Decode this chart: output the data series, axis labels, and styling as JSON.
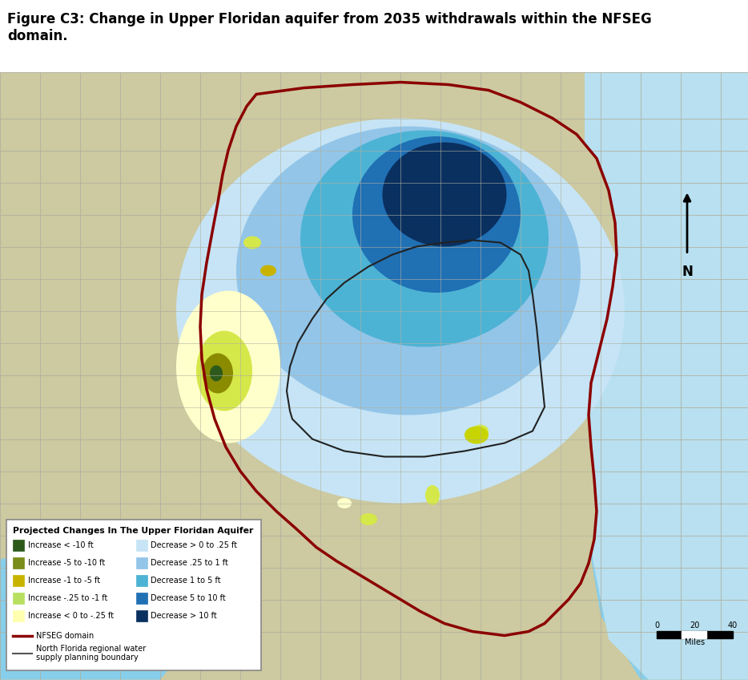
{
  "title": "Figure C3: Change in Upper Floridan aquifer from 2035 withdrawals within the NFSEG\ndomain.",
  "title_fontsize": 12,
  "background_color": "#ffffff",
  "legend_title": "Projected Changes In The Upper Floridan Aquifer",
  "legend_items": [
    {
      "label": "Increase < -10 ft",
      "color": "#2d5a1b"
    },
    {
      "label": "Increase -5 to -10 ft",
      "color": "#7a8c1a"
    },
    {
      "label": "Increase -1 to -5 ft",
      "color": "#c8b400"
    },
    {
      "label": "Increase -.25 to -1 ft",
      "color": "#b8e060"
    },
    {
      "label": "Increase < 0 to -.25 ft",
      "color": "#ffffb0"
    },
    {
      "label": "Decrease > 0 to .25 ft",
      "color": "#c6e4f5"
    },
    {
      "label": "Decrease .25 to 1 ft",
      "color": "#93c5e8"
    },
    {
      "label": "Decrease 1 to 5 ft",
      "color": "#4db3d4"
    },
    {
      "label": "Decrease 5 to 10 ft",
      "color": "#2070b4"
    },
    {
      "label": "Decrease > 10 ft",
      "color": "#0a3060"
    }
  ],
  "line_items": [
    {
      "label": "NFSEG domain",
      "color": "#8b0000",
      "lw": 2.5
    },
    {
      "label": "North Florida regional water\nsupply planning boundary",
      "color": "#555555",
      "lw": 1.5
    }
  ],
  "land_color": "#cdc9a0",
  "water_color": "#87ceeb",
  "water_light": "#b8e0f0",
  "county_line_color": "#b0b0a0",
  "fig_width": 9.34,
  "fig_height": 8.48
}
